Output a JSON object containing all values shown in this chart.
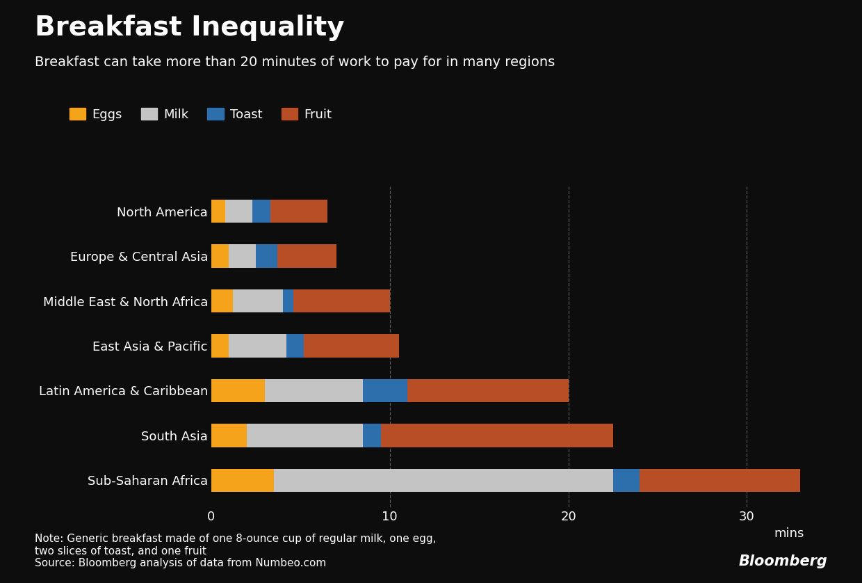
{
  "title": "Breakfast Inequality",
  "subtitle": "Breakfast can take more than 20 minutes of work to pay for in many regions",
  "note": "Note: Generic breakfast made of one 8-ounce cup of regular milk, one egg,\ntwo slices of toast, and one fruit\nSource: Bloomberg analysis of data from Numbeo.com",
  "bloomberg_label": "Bloomberg",
  "categories": [
    "North America",
    "Europe & Central Asia",
    "Middle East & North Africa",
    "East Asia & Pacific",
    "Latin America & Caribbean",
    "South Asia",
    "Sub-Saharan Africa"
  ],
  "series": {
    "Eggs": [
      0.8,
      1.0,
      1.2,
      1.0,
      3.0,
      2.0,
      3.5
    ],
    "Milk": [
      1.5,
      1.5,
      2.8,
      3.2,
      5.5,
      6.5,
      19.0
    ],
    "Toast": [
      1.0,
      1.2,
      0.6,
      1.0,
      2.5,
      1.0,
      1.5
    ],
    "Fruit": [
      3.2,
      3.3,
      5.4,
      5.3,
      9.0,
      13.0,
      9.0
    ]
  },
  "colors": {
    "Eggs": "#F5A31A",
    "Milk": "#C4C4C4",
    "Toast": "#2C6FAC",
    "Fruit": "#B84E25"
  },
  "background_color": "#0d0d0d",
  "text_color": "#ffffff",
  "bar_height": 0.52,
  "xlim": [
    0,
    35
  ],
  "xticks": [
    0,
    10,
    20,
    30
  ],
  "xlabel": "mins",
  "grid_color": "#555555",
  "title_fontsize": 28,
  "subtitle_fontsize": 14,
  "label_fontsize": 13,
  "tick_fontsize": 13,
  "note_fontsize": 11
}
